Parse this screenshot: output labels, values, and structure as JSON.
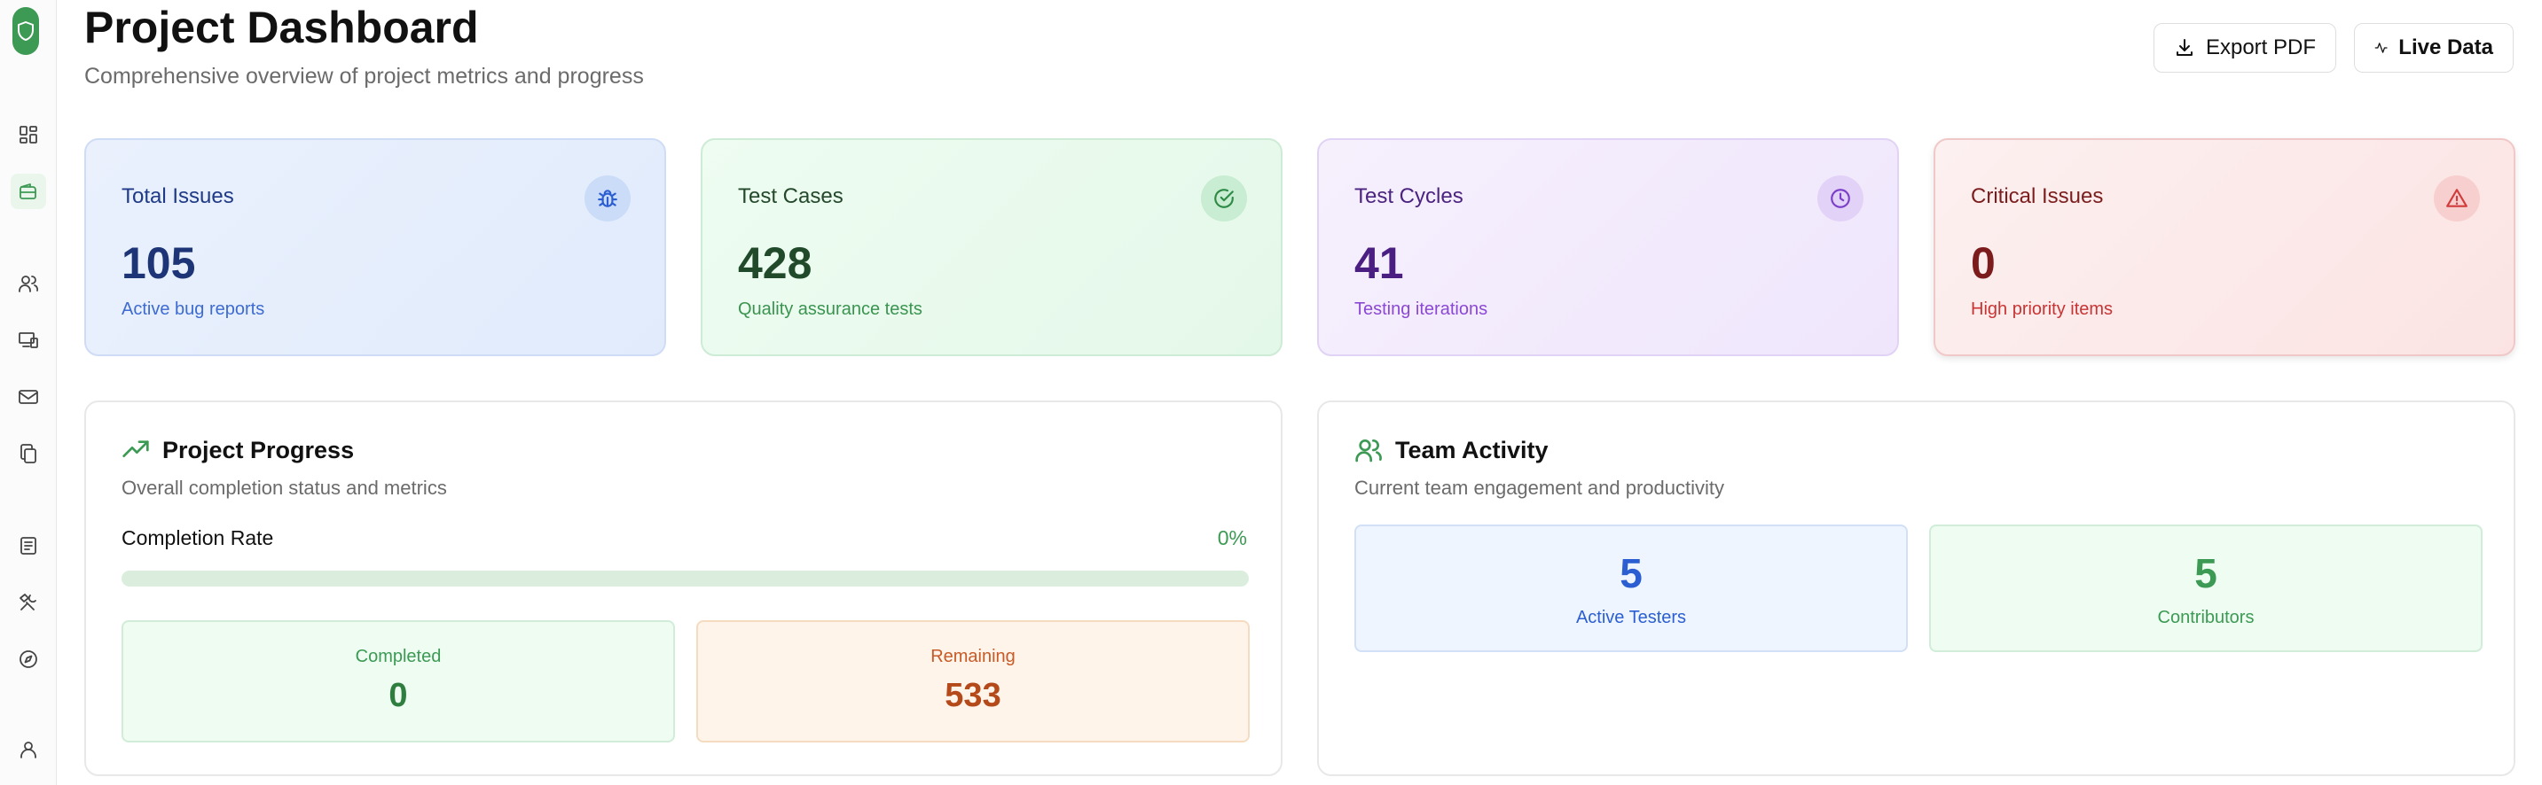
{
  "header": {
    "title": "Project Dashboard",
    "subtitle": "Comprehensive overview of project metrics and progress",
    "export_label": "Export PDF",
    "live_label": "Live Data"
  },
  "sidebar": {
    "items": [
      {
        "icon": "dashboard-icon"
      },
      {
        "icon": "wallet-icon",
        "active": true
      },
      {
        "icon": "users-icon"
      },
      {
        "icon": "devices-icon"
      },
      {
        "icon": "mail-icon"
      },
      {
        "icon": "copy-icon"
      },
      {
        "icon": "report-icon"
      },
      {
        "icon": "tools-icon"
      },
      {
        "icon": "compass-icon"
      },
      {
        "icon": "user-icon"
      }
    ]
  },
  "stats": {
    "total_issues": {
      "label": "Total Issues",
      "value": "105",
      "desc": "Active bug reports",
      "icon": "bug-icon"
    },
    "test_cases": {
      "label": "Test Cases",
      "value": "428",
      "desc": "Quality assurance tests",
      "icon": "check-circle-icon"
    },
    "test_cycles": {
      "label": "Test Cycles",
      "value": "41",
      "desc": "Testing iterations",
      "icon": "clock-icon"
    },
    "critical_issues": {
      "label": "Critical Issues",
      "value": "0",
      "desc": "High priority items",
      "icon": "alert-triangle-icon"
    }
  },
  "progress": {
    "title": "Project Progress",
    "subtitle": "Overall completion status and metrics",
    "rate_label": "Completion Rate",
    "rate_value": "0%",
    "rate_fraction": 0,
    "completed_label": "Completed",
    "completed_value": "0",
    "remaining_label": "Remaining",
    "remaining_value": "533"
  },
  "team": {
    "title": "Team Activity",
    "subtitle": "Current team engagement and productivity",
    "testers_value": "5",
    "testers_label": "Active Testers",
    "contributors_value": "5",
    "contributors_label": "Contributors"
  },
  "colors": {
    "accent": "#3c9a54",
    "blue": "#2b5fd1",
    "purple": "#7c3fc9",
    "red": "#d13b3b",
    "orange": "#b4491a"
  }
}
